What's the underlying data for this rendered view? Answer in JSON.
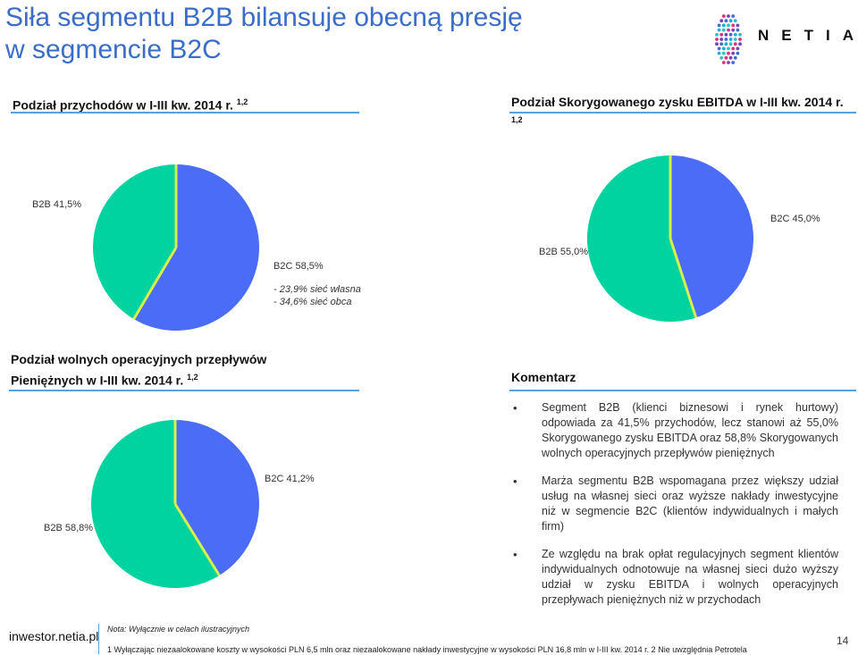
{
  "header": {
    "title_line1": "Siła segmentu B2B bilansuje obecną presję",
    "title_line2": "w segmencie B2C",
    "logo_text": "NETIA"
  },
  "sections": {
    "revenue_title": "Podział przychodów w I-III kw. 2014 r.",
    "revenue_sup": "1,2",
    "ebitda_title": "Podział Skorygowanego zysku EBITDA w I-III kw. 2014 r.",
    "ebitda_sup": "1,2",
    "cashflow_title_line1": "Podział wolnych operacyjnych przepływów",
    "cashflow_title_line2": "Pieniężnych w I-III kw. 2014 r.",
    "cashflow_sup": "1,2",
    "comment_title": "Komentarz"
  },
  "labels": {
    "revenue_b2b": "B2B 41,5%",
    "revenue_b2c": "B2C 58,5%",
    "revenue_note1": "-   23,9% sieć własna",
    "revenue_note2": "-   34,6% sieć obca",
    "ebitda_b2c": "B2C 45,0%",
    "ebitda_b2b": "B2B 55,0%",
    "cashflow_b2c": "B2C 41,2%",
    "cashflow_b2b": "B2B 58,8%"
  },
  "comments": [
    "Segment B2B (klienci biznesowi i rynek hurtowy) odpowiada za 41,5% przychodów, lecz stanowi aż 55,0% Skorygowanego zysku EBITDA oraz 58,8% Skorygowanych wolnych operacyjnych przepływów pieniężnych",
    "Marża segmentu B2B wspomagana przez większy udział usług na własnej sieci oraz wyższe nakłady inwestycyjne niż w segmencie B2C (klientów indywidualnych i małych firm)",
    "Ze względu na brak opłat regulacyjnych segment klientów indywidualnych odnotowuje na własnej sieci dużo wyższy udział w zysku EBITDA i wolnych operacyjnych przepływach pieniężnych niż w przychodach"
  ],
  "footer": {
    "site": "inwestor.netia.pl",
    "note": "Nota: Wyłącznie w celach ilustracyjnych",
    "footnote": "1 Wyłączając niezaalokowane koszty w wysokości PLN 6,5 mln oraz niezaalokowane nakłady inwestycyjne w wysokości PLN 16,8 mln w I-III kw. 2014 r.      2 Nie uwzględnia Petrotela",
    "page": "14"
  },
  "colors": {
    "b2b": "#00d2a0",
    "b2c": "#4a6cf7",
    "separator": "#d8f048"
  },
  "chart_data": [
    {
      "type": "pie",
      "title": "Podział przychodów w I-III kw. 2014 r.",
      "categories": [
        "B2B",
        "B2C"
      ],
      "values": [
        41.5,
        58.5
      ]
    },
    {
      "type": "pie",
      "title": "Podział Skorygowanego zysku EBITDA w I-III kw. 2014 r.",
      "categories": [
        "B2C",
        "B2B"
      ],
      "values": [
        45.0,
        55.0
      ]
    },
    {
      "type": "pie",
      "title": "Podział wolnych operacyjnych przepływów Pieniężnych w I-III kw. 2014 r.",
      "categories": [
        "B2C",
        "B2B"
      ],
      "values": [
        41.2,
        58.8
      ]
    }
  ]
}
